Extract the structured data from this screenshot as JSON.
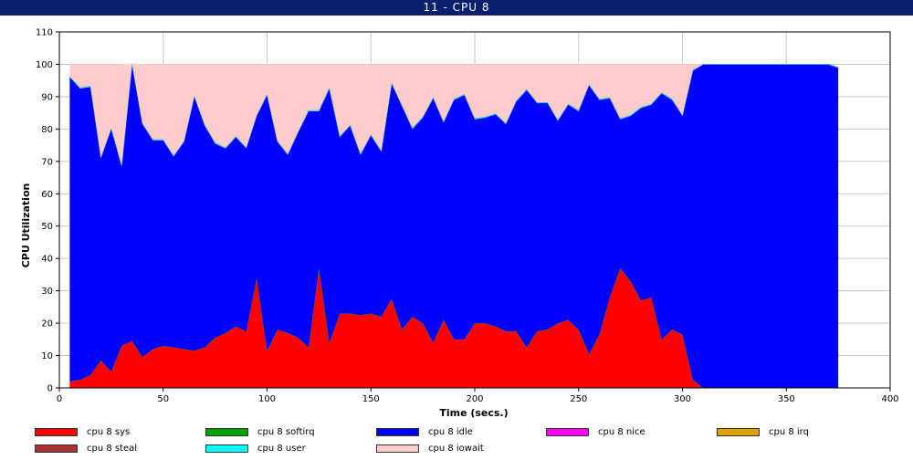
{
  "window": {
    "title": "11 - CPU 8"
  },
  "chart_data": {
    "type": "area",
    "stacked": true,
    "title": "11 - CPU 8",
    "xlabel": "Time (secs.)",
    "ylabel": "CPU Utilization",
    "xlim": [
      0,
      400
    ],
    "ylim": [
      0,
      110
    ],
    "xticks": [
      0,
      50,
      100,
      150,
      200,
      250,
      300,
      350,
      400
    ],
    "yticks": [
      0,
      10,
      20,
      30,
      40,
      50,
      60,
      70,
      80,
      90,
      100,
      110
    ],
    "grid": true,
    "legend_position": "bottom",
    "x": [
      5,
      10,
      15,
      20,
      25,
      30,
      35,
      40,
      45,
      50,
      55,
      60,
      65,
      70,
      75,
      80,
      85,
      90,
      95,
      100,
      105,
      110,
      115,
      120,
      125,
      130,
      135,
      140,
      145,
      150,
      155,
      160,
      165,
      170,
      175,
      180,
      185,
      190,
      195,
      200,
      205,
      210,
      215,
      220,
      225,
      230,
      235,
      240,
      245,
      250,
      255,
      260,
      265,
      270,
      275,
      280,
      285,
      290,
      295,
      300,
      305,
      310,
      315,
      320,
      325,
      330,
      335,
      340,
      345,
      350,
      355,
      360,
      365,
      370,
      375
    ],
    "series": [
      {
        "name": "cpu 8 sys",
        "color": "#ff0000",
        "values": [
          2,
          2.5,
          4,
          8.5,
          5,
          13,
          14.5,
          9.5,
          12,
          13,
          12.5,
          12,
          11.5,
          12.5,
          15.5,
          17,
          19,
          17.5,
          34,
          11.5,
          18,
          17,
          15.5,
          12.5,
          37,
          14,
          23,
          23,
          22.5,
          23,
          22,
          27.5,
          18,
          22,
          20,
          14,
          21,
          15,
          15,
          20,
          20,
          19,
          17.5,
          17.5,
          12.5,
          17.5,
          18,
          20,
          21,
          18,
          10.5,
          16.5,
          28,
          37,
          33,
          27,
          28,
          15,
          18,
          16.5,
          2.5,
          0,
          0,
          0,
          0,
          0,
          0,
          0,
          0,
          0,
          0,
          0,
          0,
          0,
          0
        ]
      },
      {
        "name": "cpu 8 softirq",
        "color": "#00a000",
        "values": [
          0,
          0,
          0,
          0,
          0,
          0,
          0,
          0,
          0,
          0,
          0,
          0,
          0,
          0,
          0,
          0,
          0,
          0,
          0,
          0,
          0,
          0,
          0,
          0,
          0,
          0,
          0,
          0,
          0,
          0,
          0,
          0,
          0,
          0,
          0,
          0,
          0,
          0,
          0,
          0,
          0,
          0,
          0,
          0,
          0,
          0,
          0,
          0,
          0,
          0,
          0,
          0,
          0,
          0,
          0,
          0,
          0,
          0,
          0,
          0,
          0,
          0,
          0,
          0,
          0,
          0,
          0,
          0,
          0,
          0,
          0,
          0,
          0,
          0,
          0
        ]
      },
      {
        "name": "cpu 8 idle",
        "color": "#0000ff",
        "values": [
          94,
          90,
          89,
          62.5,
          75,
          55.5,
          85.5,
          72,
          64.5,
          63.5,
          59,
          64,
          78.5,
          68.5,
          60,
          57,
          58.5,
          56.5,
          50,
          79,
          58,
          55,
          63.5,
          73,
          48.5,
          78.5,
          54.5,
          58,
          49.5,
          55,
          51,
          66.5,
          69,
          58,
          63.5,
          75.5,
          61,
          74,
          75.5,
          63,
          63.5,
          65.5,
          64,
          71,
          79.5,
          70.5,
          70,
          62.5,
          66.5,
          67.5,
          83,
          72.5,
          61.5,
          46,
          51,
          59.5,
          59.5,
          76,
          71,
          67.5,
          95.5,
          100,
          100,
          100,
          100,
          100,
          100,
          100,
          100,
          100,
          100,
          100,
          100,
          100,
          99
        ]
      },
      {
        "name": "cpu 8 nice",
        "color": "#ff00ff",
        "values": [
          0,
          0,
          0,
          0,
          0,
          0,
          0,
          0,
          0,
          0,
          0,
          0,
          0,
          0,
          0,
          0,
          0,
          0,
          0,
          0,
          0,
          0,
          0,
          0,
          0,
          0,
          0,
          0,
          0,
          0,
          0,
          0,
          0,
          0,
          0,
          0,
          0,
          0,
          0,
          0,
          0,
          0,
          0,
          0,
          0,
          0,
          0,
          0,
          0,
          0,
          0,
          0,
          0,
          0,
          0,
          0,
          0,
          0,
          0,
          0,
          0,
          0,
          0,
          0,
          0,
          0,
          0,
          0,
          0,
          0,
          0,
          0,
          0,
          0,
          0
        ]
      },
      {
        "name": "cpu 8 irq",
        "color": "#e0a000",
        "values": [
          0,
          0,
          0,
          0,
          0,
          0,
          0,
          0,
          0,
          0,
          0,
          0,
          0,
          0,
          0,
          0,
          0,
          0,
          0,
          0,
          0,
          0,
          0,
          0,
          0,
          0,
          0,
          0,
          0,
          0,
          0,
          0,
          0,
          0,
          0,
          0,
          0,
          0,
          0,
          0,
          0,
          0,
          0,
          0,
          0,
          0,
          0,
          0,
          0,
          0,
          0,
          0,
          0,
          0,
          0,
          0,
          0,
          0,
          0,
          0,
          0,
          0,
          0,
          0,
          0,
          0,
          0,
          0,
          0,
          0,
          0,
          0,
          0,
          0,
          0
        ]
      },
      {
        "name": "cpu 8 steal",
        "color": "#a83232",
        "values": [
          0,
          0,
          0,
          0,
          0,
          0,
          0,
          0,
          0,
          0,
          0,
          0,
          0,
          0,
          0,
          0,
          0,
          0,
          0,
          0,
          0,
          0,
          0,
          0,
          0,
          0,
          0,
          0,
          0,
          0,
          0,
          0,
          0,
          0,
          0,
          0,
          0,
          0,
          0,
          0,
          0,
          0,
          0,
          0,
          0,
          0,
          0,
          0,
          0,
          0,
          0,
          0,
          0,
          0,
          0,
          0,
          0,
          0,
          0,
          0,
          0,
          0,
          0,
          0,
          0,
          0,
          0,
          0,
          0,
          0,
          0,
          0,
          0,
          0,
          0
        ]
      },
      {
        "name": "cpu 8 user",
        "color": "#00ffff",
        "values": [
          0.3,
          0.3,
          0.3,
          0.3,
          0.3,
          0.3,
          0.3,
          0.3,
          0.3,
          0.3,
          0.3,
          0.3,
          0.3,
          0.3,
          0.3,
          0.3,
          0.3,
          0.3,
          0.3,
          0.3,
          0.3,
          0.3,
          0.3,
          0.3,
          0.3,
          0.3,
          0.3,
          0.3,
          0.3,
          0.3,
          0.3,
          0.3,
          0.3,
          0.3,
          0.3,
          0.3,
          0.3,
          0.3,
          0.3,
          0.3,
          0.3,
          0.3,
          0.3,
          0.3,
          0.3,
          0.3,
          0.3,
          0.3,
          0.3,
          0.3,
          0.3,
          0.3,
          0.3,
          0.3,
          0.3,
          0.3,
          0.3,
          0.3,
          0.3,
          0.3,
          0.3,
          0,
          0,
          0,
          0,
          0,
          0,
          0,
          0,
          0,
          0,
          0,
          0,
          0,
          0
        ]
      },
      {
        "name": "cpu 8 iowait",
        "color": "#ffcccc",
        "values": [
          3.7,
          7.2,
          6.7,
          28.7,
          19.7,
          31.2,
          0,
          18.2,
          23.2,
          23.2,
          28.2,
          23.7,
          9.7,
          18.7,
          24.2,
          25.7,
          22.2,
          25.7,
          15.7,
          9.2,
          23.7,
          27.7,
          20.7,
          14.2,
          14.2,
          7.2,
          22.2,
          18.7,
          27.7,
          21.7,
          26.7,
          5.7,
          12.7,
          19.7,
          16.2,
          10.2,
          17.7,
          10.7,
          9.2,
          16.7,
          16.2,
          15.2,
          18.2,
          11.2,
          7.7,
          11.7,
          11.7,
          17.2,
          12.2,
          14.2,
          6.2,
          10.7,
          10.2,
          16.7,
          15.7,
          13.2,
          12.2,
          8.7,
          10.7,
          15.7,
          1.7,
          0,
          0,
          0,
          0,
          0,
          0,
          0,
          0,
          0,
          0,
          0,
          0,
          0,
          0
        ]
      }
    ]
  }
}
